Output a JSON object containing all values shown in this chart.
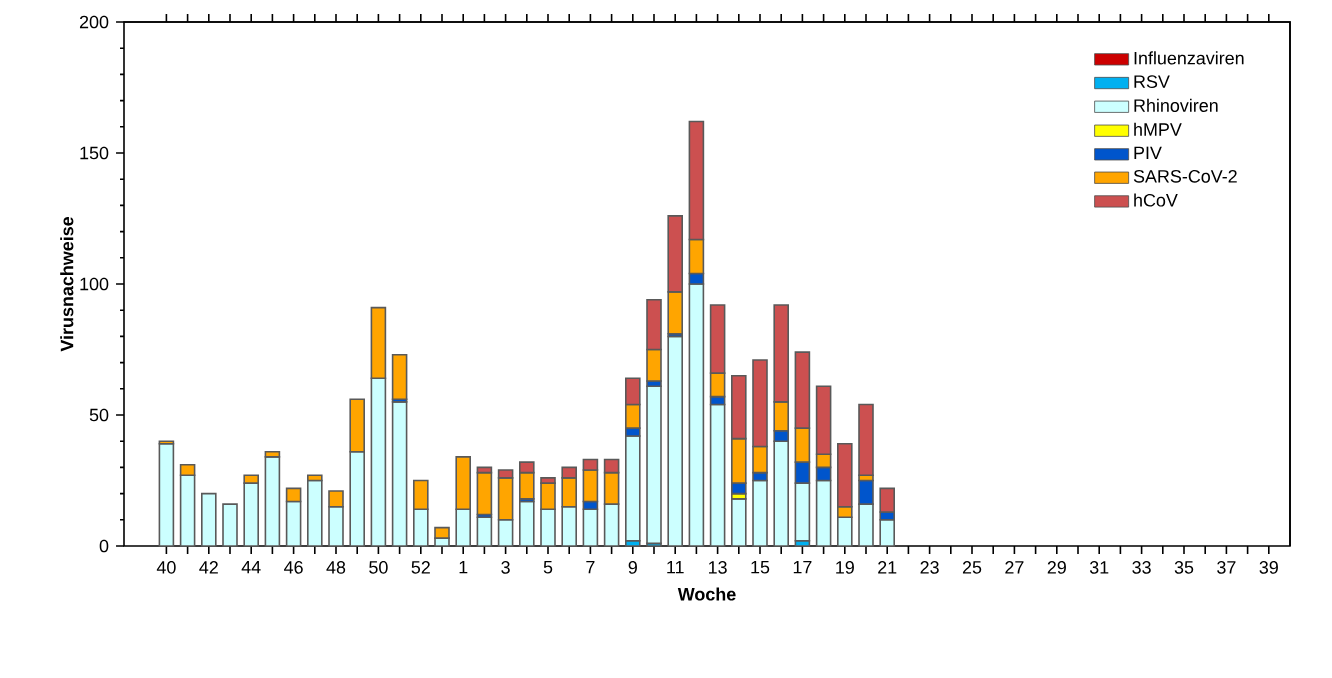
{
  "chart_data": {
    "type": "bar",
    "stacked": true,
    "xlabel": "Woche",
    "ylabel": "Virusnachweise",
    "categories": [
      "40",
      null,
      "42",
      null,
      "44",
      null,
      "46",
      null,
      "48",
      null,
      "50",
      null,
      "52",
      null,
      "1",
      null,
      "3",
      null,
      "5",
      null,
      "7",
      null,
      "9",
      null,
      "11",
      null,
      "13",
      null,
      "15",
      null,
      "17",
      null,
      "19",
      null,
      "21",
      null,
      "23",
      null,
      "25",
      null,
      "27",
      null,
      "29",
      null,
      "31",
      null,
      "33",
      null,
      "35",
      null,
      "37",
      null,
      "39"
    ],
    "series": [
      {
        "name": "Influenzaviren",
        "color": "#cc0000",
        "values": [
          0,
          0,
          0,
          0,
          0,
          0,
          0,
          0,
          0,
          0,
          0,
          0,
          0,
          0,
          0,
          0,
          0,
          0,
          0,
          0,
          0,
          0,
          0,
          0,
          0,
          0,
          0,
          0,
          0,
          0,
          0,
          0,
          0,
          0,
          0,
          null,
          null,
          null,
          null,
          null,
          null,
          null,
          null,
          null,
          null,
          null,
          null,
          null,
          null,
          null,
          null,
          null,
          null
        ]
      },
      {
        "name": "RSV",
        "color": "#00b0f0",
        "values": [
          0,
          0,
          0,
          0,
          0,
          0,
          0,
          0,
          0,
          0,
          0,
          0,
          0,
          0,
          0,
          0,
          0,
          0,
          0,
          0,
          0,
          0,
          2,
          1,
          0,
          0,
          0,
          0,
          0,
          0,
          2,
          0,
          0,
          0,
          0,
          null,
          null,
          null,
          null,
          null,
          null,
          null,
          null,
          null,
          null,
          null,
          null,
          null,
          null,
          null,
          null,
          null,
          null
        ]
      },
      {
        "name": "Rhinoviren",
        "color": "#ccffff",
        "values": [
          39,
          27,
          20,
          16,
          24,
          34,
          17,
          25,
          15,
          36,
          64,
          55,
          14,
          3,
          14,
          11,
          10,
          17,
          14,
          15,
          14,
          16,
          40,
          60,
          80,
          100,
          54,
          18,
          25,
          40,
          22,
          25,
          11,
          16,
          10,
          null,
          null,
          null,
          null,
          null,
          null,
          null,
          null,
          null,
          null,
          null,
          null,
          null,
          null,
          null,
          null,
          null,
          null
        ]
      },
      {
        "name": "hMPV",
        "color": "#ffff00",
        "values": [
          0,
          0,
          0,
          0,
          0,
          0,
          0,
          0,
          0,
          0,
          0,
          0,
          0,
          0,
          0,
          0,
          0,
          0,
          0,
          0,
          0,
          0,
          0,
          0,
          0,
          0,
          0,
          2,
          0,
          0,
          0,
          0,
          0,
          0,
          0,
          null,
          null,
          null,
          null,
          null,
          null,
          null,
          null,
          null,
          null,
          null,
          null,
          null,
          null,
          null,
          null,
          null,
          null
        ]
      },
      {
        "name": "PIV",
        "color": "#0055cc",
        "values": [
          0,
          0,
          0,
          0,
          0,
          0,
          0,
          0,
          0,
          0,
          0,
          1,
          0,
          0,
          0,
          1,
          0,
          1,
          0,
          0,
          3,
          0,
          3,
          2,
          1,
          4,
          3,
          4,
          3,
          4,
          8,
          5,
          0,
          9,
          3,
          null,
          null,
          null,
          null,
          null,
          null,
          null,
          null,
          null,
          null,
          null,
          null,
          null,
          null,
          null,
          null,
          null,
          null
        ]
      },
      {
        "name": "SARS-CoV-2",
        "color": "#ffa500",
        "values": [
          1,
          4,
          0,
          0,
          3,
          2,
          5,
          2,
          6,
          20,
          27,
          17,
          11,
          4,
          20,
          16,
          16,
          10,
          10,
          11,
          12,
          12,
          9,
          12,
          16,
          13,
          9,
          17,
          10,
          11,
          13,
          5,
          4,
          2,
          0,
          null,
          null,
          null,
          null,
          null,
          null,
          null,
          null,
          null,
          null,
          null,
          null,
          null,
          null,
          null,
          null,
          null,
          null
        ]
      },
      {
        "name": "hCoV",
        "color": "#cc5050",
        "values": [
          0,
          0,
          0,
          0,
          0,
          0,
          0,
          0,
          0,
          0,
          0,
          0,
          0,
          0,
          0,
          2,
          3,
          4,
          2,
          4,
          4,
          5,
          10,
          19,
          29,
          45,
          26,
          24,
          33,
          37,
          29,
          26,
          24,
          27,
          9,
          null,
          null,
          null,
          null,
          null,
          null,
          null,
          null,
          null,
          null,
          null,
          null,
          null,
          null,
          null,
          null,
          null,
          null
        ]
      }
    ],
    "ylim": [
      0,
      200
    ],
    "yticks": [
      0,
      50,
      100,
      150,
      200
    ],
    "legend": "top right"
  }
}
